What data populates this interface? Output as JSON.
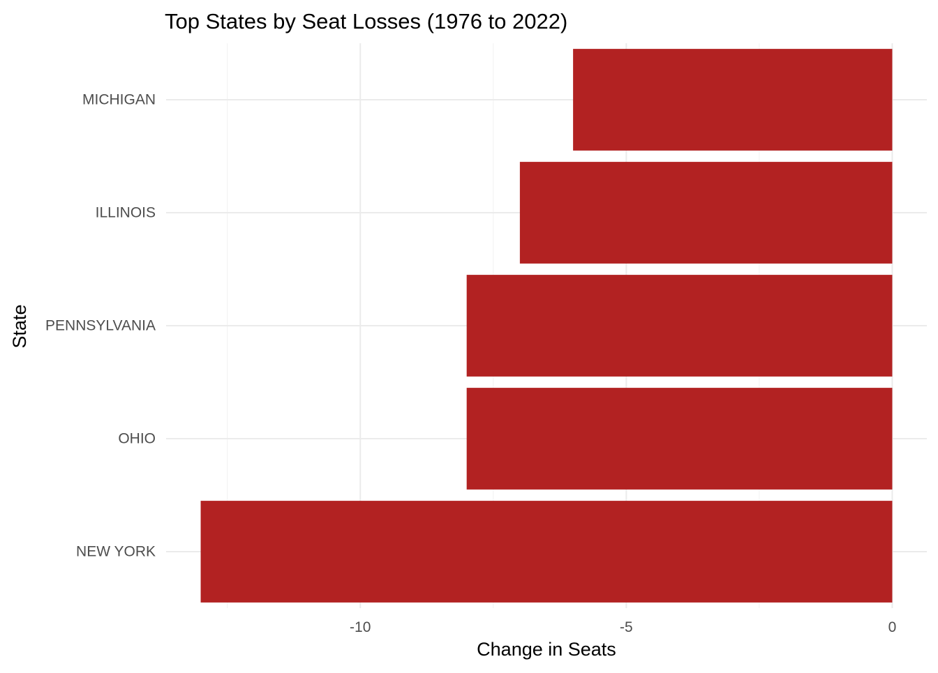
{
  "chart_data": {
    "type": "bar",
    "orientation": "horizontal",
    "title": "Top States by Seat Losses (1976 to 2022)",
    "xlabel": "Change in Seats",
    "ylabel": "State",
    "categories": [
      "NEW YORK",
      "OHIO",
      "PENNSYLVANIA",
      "ILLINOIS",
      "MICHIGAN"
    ],
    "values": [
      -13,
      -8,
      -8,
      -7,
      -6
    ],
    "xlim": [
      -13.65,
      0.65
    ],
    "xticks": [
      -10,
      -5,
      0
    ],
    "xtick_labels": [
      "-10",
      "-5",
      "0"
    ],
    "grid": true,
    "legend": "none",
    "colors": {
      "bar": "#b22222",
      "grid_major": "#ebebeb",
      "grid_minor": "#f4f4f4",
      "tick_text": "#4d4d4d",
      "text": "#000000",
      "background": "#ffffff"
    }
  }
}
